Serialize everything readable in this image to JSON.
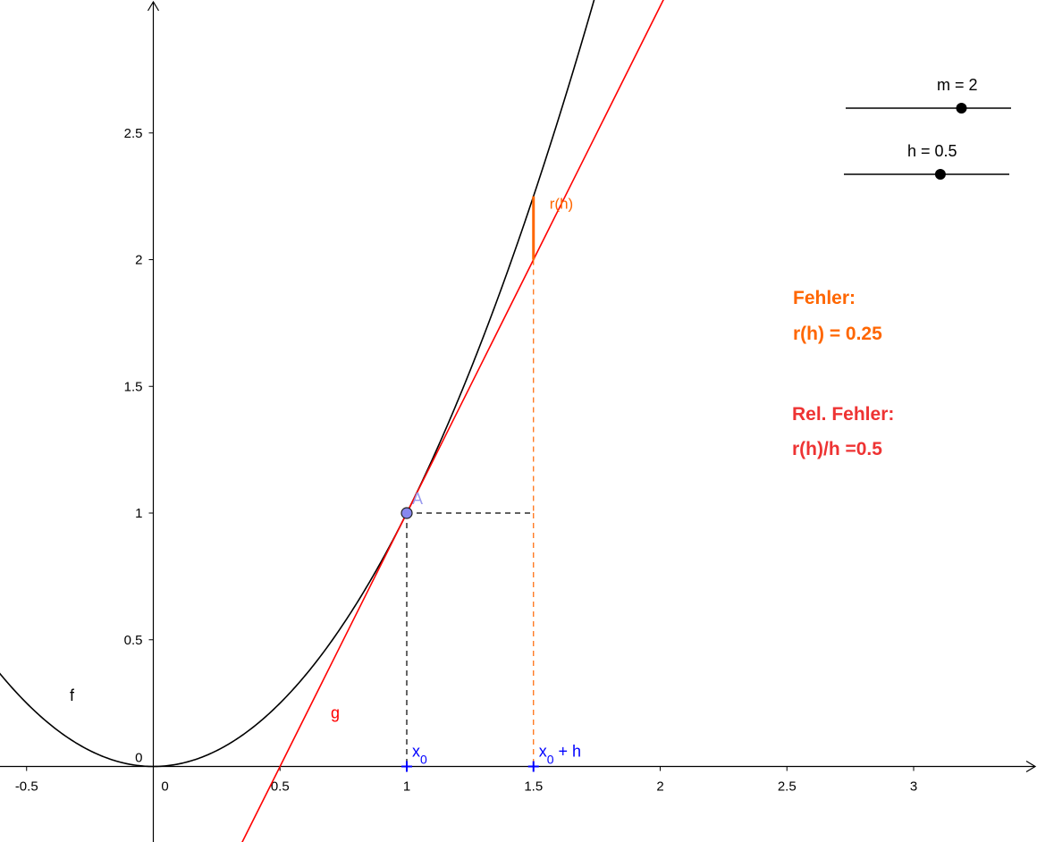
{
  "chart_data": {
    "type": "line",
    "title": "",
    "xlabel": "",
    "ylabel": "",
    "xlim": [
      -0.6,
      3.4
    ],
    "ylim": [
      -0.3,
      3.0
    ],
    "x_ticks": [
      -0.5,
      0,
      0.5,
      1,
      1.5,
      2,
      2.5,
      3
    ],
    "x_tick_labels": [
      "-0.5",
      "0",
      "0.5",
      "1",
      "1.5",
      "2",
      "2.5",
      "3"
    ],
    "y_ticks": [
      0.5,
      1,
      1.5,
      2,
      2.5
    ],
    "y_tick_labels": [
      "0.5",
      "1",
      "1.5",
      "2",
      "2.5"
    ],
    "origin_label": "0",
    "grid": false,
    "series": [
      {
        "name": "f",
        "label": "f",
        "expression": "x^2",
        "color": "#000000"
      },
      {
        "name": "g",
        "label": "g",
        "expression": "2x - 1",
        "slope": 2,
        "intercept": -1,
        "color": "#ff0000"
      }
    ],
    "point_A": {
      "label": "A",
      "x": 1,
      "y": 1,
      "color": "#6666dd"
    },
    "x0": {
      "label": "x",
      "sub": "0",
      "value": 1
    },
    "x0h": {
      "label": "x",
      "sub": "0",
      "suffix": " + h",
      "value": 1.5
    },
    "residual": {
      "label": "r(h)",
      "x": 1.5,
      "y_from": 2,
      "y_to": 2.25,
      "color": "#ff6600"
    },
    "colors": {
      "orange": "#ff6600",
      "red_text": "#ee3333",
      "blue": "#0000ff"
    }
  },
  "sliders": [
    {
      "name": "m",
      "label": "m = 2",
      "value": 2,
      "min": -5,
      "max": 5
    },
    {
      "name": "h",
      "label": "h = 0.5",
      "value": 0.5,
      "min": -3,
      "max": 3
    }
  ],
  "info": {
    "fehler_title": "Fehler:",
    "fehler_value": "r(h) = 0.25",
    "rel_title": "Rel. Fehler:",
    "rel_value": "r(h)/h =0.5"
  }
}
